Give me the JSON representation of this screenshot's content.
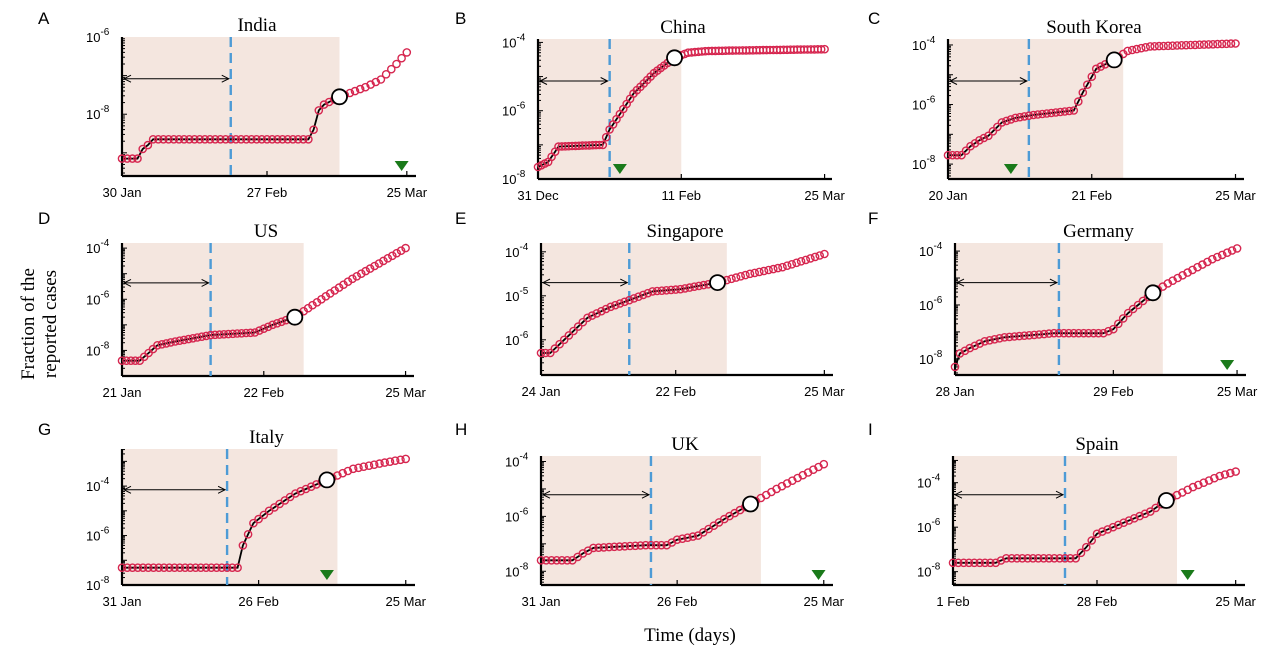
{
  "figure": {
    "ylabel_line1": "Fraction of the",
    "ylabel_line2": "reported cases",
    "xlabel": "Time (days)",
    "colors": {
      "marker": "#d6264f",
      "fit_line": "#000000",
      "shade": "#f4e6df",
      "divider": "#4d9bd6",
      "arrowhead": "#1a7a1a",
      "highlight_marker": "#000000"
    }
  },
  "chart_data": [
    {
      "type": "scatter",
      "panel": "A",
      "title": "India",
      "yscale": "log",
      "xlim": [
        0,
        56
      ],
      "ylim_exp": [
        -9.6,
        -6
      ],
      "yticks": [
        {
          "exp": -6,
          "label": "10"
        },
        {
          "exp": -8,
          "label": "10"
        }
      ],
      "xticks": [
        {
          "x": 0,
          "label": "30 Jan"
        },
        {
          "x": 28,
          "label": "27 Feb"
        },
        {
          "x": 55,
          "label": "25 Mar"
        }
      ],
      "train_end": 42,
      "divider": 21,
      "green_marker": 54,
      "highlight": 42,
      "range_arrow": [
        0,
        21
      ],
      "knots": [
        [
          0,
          -9.15
        ],
        [
          3,
          -9.15
        ],
        [
          4,
          -8.9
        ],
        [
          5,
          -8.8
        ],
        [
          6,
          -8.65
        ],
        [
          36,
          -8.65
        ],
        [
          37,
          -8.4
        ],
        [
          38,
          -7.9
        ],
        [
          39,
          -7.75
        ],
        [
          42,
          -7.55
        ],
        [
          47,
          -7.3
        ],
        [
          50,
          -7.1
        ],
        [
          53,
          -6.7
        ],
        [
          55,
          -6.4
        ]
      ]
    },
    {
      "type": "scatter",
      "panel": "B",
      "title": "China",
      "yscale": "log",
      "xlim": [
        0,
        85
      ],
      "ylim_exp": [
        -8,
        -3.9
      ],
      "yticks": [
        {
          "exp": -4,
          "label": "10"
        },
        {
          "exp": -6,
          "label": "10"
        },
        {
          "exp": -8,
          "label": "10"
        }
      ],
      "xticks": [
        {
          "x": 0,
          "label": "31 Dec"
        },
        {
          "x": 42,
          "label": "11 Feb"
        },
        {
          "x": 84,
          "label": "25 Mar"
        }
      ],
      "train_end": 42,
      "divider": 21,
      "green_marker": 24,
      "highlight": 40,
      "range_arrow": [
        0,
        21
      ],
      "knots": [
        [
          0,
          -7.65
        ],
        [
          3,
          -7.5
        ],
        [
          6,
          -7.05
        ],
        [
          19,
          -7
        ],
        [
          21,
          -6.55
        ],
        [
          24,
          -6.1
        ],
        [
          28,
          -5.5
        ],
        [
          34,
          -4.9
        ],
        [
          40,
          -4.45
        ],
        [
          44,
          -4.3
        ],
        [
          50,
          -4.25
        ],
        [
          84,
          -4.2
        ]
      ]
    },
    {
      "type": "scatter",
      "panel": "C",
      "title": "South Korea",
      "yscale": "log",
      "xlim": [
        0,
        65
      ],
      "ylim_exp": [
        -8.5,
        -3.8
      ],
      "yticks": [
        {
          "exp": -4,
          "label": "10"
        },
        {
          "exp": -6,
          "label": "10"
        },
        {
          "exp": -8,
          "label": "10"
        }
      ],
      "xticks": [
        {
          "x": 0,
          "label": "20 Jan"
        },
        {
          "x": 32,
          "label": "21 Feb"
        },
        {
          "x": 64,
          "label": "25 Mar"
        }
      ],
      "train_end": 39,
      "divider": 18,
      "green_marker": 14,
      "highlight": 37,
      "range_arrow": [
        0,
        18
      ],
      "knots": [
        [
          0,
          -7.7
        ],
        [
          3,
          -7.7
        ],
        [
          5,
          -7.4
        ],
        [
          7,
          -7.2
        ],
        [
          9,
          -7.05
        ],
        [
          12,
          -6.6
        ],
        [
          15,
          -6.45
        ],
        [
          19,
          -6.35
        ],
        [
          28,
          -6.2
        ],
        [
          30,
          -5.6
        ],
        [
          33,
          -4.8
        ],
        [
          37,
          -4.5
        ],
        [
          40,
          -4.2
        ],
        [
          45,
          -4.05
        ],
        [
          64,
          -3.95
        ]
      ]
    },
    {
      "type": "scatter",
      "panel": "D",
      "title": "US",
      "yscale": "log",
      "xlim": [
        0,
        65
      ],
      "ylim_exp": [
        -9,
        -3.8
      ],
      "yticks": [
        {
          "exp": -4,
          "label": "10"
        },
        {
          "exp": -6,
          "label": "10"
        },
        {
          "exp": -8,
          "label": "10"
        }
      ],
      "xticks": [
        {
          "x": 0,
          "label": "21 Jan"
        },
        {
          "x": 32,
          "label": "22 Feb"
        },
        {
          "x": 64,
          "label": "25 Mar"
        }
      ],
      "train_end": 41,
      "divider": 20,
      "green_marker": null,
      "highlight": 39,
      "range_arrow": [
        0,
        20
      ],
      "knots": [
        [
          0,
          -8.4
        ],
        [
          4,
          -8.4
        ],
        [
          6,
          -8.1
        ],
        [
          8,
          -7.8
        ],
        [
          12,
          -7.65
        ],
        [
          20,
          -7.4
        ],
        [
          30,
          -7.3
        ],
        [
          34,
          -7.0
        ],
        [
          39,
          -6.7
        ],
        [
          45,
          -6.0
        ],
        [
          52,
          -5.2
        ],
        [
          58,
          -4.6
        ],
        [
          64,
          -4.0
        ]
      ]
    },
    {
      "type": "scatter",
      "panel": "E",
      "title": "Singapore",
      "yscale": "log",
      "xlim": [
        0,
        62
      ],
      "ylim_exp": [
        -6.8,
        -3.8
      ],
      "yticks": [
        {
          "exp": -4,
          "label": "10"
        },
        {
          "exp": -5,
          "label": "10"
        },
        {
          "exp": -6,
          "label": "10"
        }
      ],
      "xticks": [
        {
          "x": 0,
          "label": "24 Jan"
        },
        {
          "x": 29,
          "label": "22 Feb"
        },
        {
          "x": 61,
          "label": "25 Mar"
        }
      ],
      "train_end": 40,
      "divider": 19,
      "green_marker": null,
      "highlight": 38,
      "range_arrow": [
        0,
        19
      ],
      "knots": [
        [
          0,
          -6.3
        ],
        [
          2,
          -6.3
        ],
        [
          6,
          -5.9
        ],
        [
          10,
          -5.5
        ],
        [
          15,
          -5.25
        ],
        [
          19,
          -5.1
        ],
        [
          24,
          -4.9
        ],
        [
          30,
          -4.85
        ],
        [
          38,
          -4.7
        ],
        [
          45,
          -4.5
        ],
        [
          52,
          -4.35
        ],
        [
          61,
          -4.05
        ]
      ]
    },
    {
      "type": "scatter",
      "panel": "F",
      "title": "Germany",
      "yscale": "log",
      "xlim": [
        0,
        58
      ],
      "ylim_exp": [
        -8.6,
        -3.7
      ],
      "yticks": [
        {
          "exp": -4,
          "label": "10"
        },
        {
          "exp": -6,
          "label": "10"
        },
        {
          "exp": -8,
          "label": "10"
        }
      ],
      "xticks": [
        {
          "x": 0,
          "label": "28 Jan"
        },
        {
          "x": 32,
          "label": "29 Feb"
        },
        {
          "x": 57,
          "label": "25 Mar"
        }
      ],
      "train_end": 42,
      "divider": 21,
      "green_marker": 55,
      "highlight": 40,
      "range_arrow": [
        0,
        21
      ],
      "knots": [
        [
          0,
          -8.3
        ],
        [
          1,
          -7.8
        ],
        [
          3,
          -7.6
        ],
        [
          6,
          -7.35
        ],
        [
          10,
          -7.2
        ],
        [
          20,
          -7.05
        ],
        [
          30,
          -7.05
        ],
        [
          32,
          -6.9
        ],
        [
          35,
          -6.3
        ],
        [
          40,
          -5.55
        ],
        [
          43,
          -5.2
        ],
        [
          48,
          -4.7
        ],
        [
          52,
          -4.3
        ],
        [
          57,
          -3.9
        ]
      ]
    },
    {
      "type": "scatter",
      "panel": "G",
      "title": "Italy",
      "yscale": "log",
      "xlim": [
        0,
        55
      ],
      "ylim_exp": [
        -8,
        -2.5
      ],
      "yticks": [
        {
          "exp": -4,
          "label": "10"
        },
        {
          "exp": -6,
          "label": "10"
        },
        {
          "exp": -8,
          "label": "10"
        }
      ],
      "xticks": [
        {
          "x": 0,
          "label": "31 Jan"
        },
        {
          "x": 26,
          "label": "26 Feb"
        },
        {
          "x": 54,
          "label": "25 Mar"
        }
      ],
      "train_end": 41,
      "divider": 20,
      "green_marker": 39,
      "highlight": 39,
      "range_arrow": [
        0,
        20
      ],
      "knots": [
        [
          0,
          -7.3
        ],
        [
          22,
          -7.3
        ],
        [
          23,
          -6.4
        ],
        [
          25,
          -5.5
        ],
        [
          28,
          -5.0
        ],
        [
          33,
          -4.3
        ],
        [
          39,
          -3.75
        ],
        [
          44,
          -3.3
        ],
        [
          50,
          -3.05
        ],
        [
          54,
          -2.9
        ]
      ]
    },
    {
      "type": "scatter",
      "panel": "H",
      "title": "UK",
      "yscale": "log",
      "xlim": [
        0,
        55
      ],
      "ylim_exp": [
        -8.5,
        -3.8
      ],
      "yticks": [
        {
          "exp": -4,
          "label": "10"
        },
        {
          "exp": -6,
          "label": "10"
        },
        {
          "exp": -8,
          "label": "10"
        }
      ],
      "xticks": [
        {
          "x": 0,
          "label": "31 Jan"
        },
        {
          "x": 26,
          "label": "26 Feb"
        },
        {
          "x": 54,
          "label": "25 Mar"
        }
      ],
      "train_end": 42,
      "divider": 21,
      "green_marker": 53,
      "highlight": 40,
      "range_arrow": [
        0,
        21
      ],
      "knots": [
        [
          0,
          -7.6
        ],
        [
          6,
          -7.6
        ],
        [
          8,
          -7.35
        ],
        [
          10,
          -7.15
        ],
        [
          20,
          -7.05
        ],
        [
          24,
          -7.05
        ],
        [
          26,
          -6.85
        ],
        [
          30,
          -6.7
        ],
        [
          35,
          -6.1
        ],
        [
          40,
          -5.55
        ],
        [
          45,
          -5.0
        ],
        [
          50,
          -4.5
        ],
        [
          54,
          -4.1
        ]
      ]
    },
    {
      "type": "scatter",
      "panel": "I",
      "title": "Spain",
      "yscale": "log",
      "xlim": [
        0,
        54
      ],
      "ylim_exp": [
        -8.6,
        -2.8
      ],
      "yticks": [
        {
          "exp": -4,
          "label": "10"
        },
        {
          "exp": -6,
          "label": "10"
        },
        {
          "exp": -8,
          "label": "10"
        }
      ],
      "xticks": [
        {
          "x": 0,
          "label": "1 Feb"
        },
        {
          "x": 27,
          "label": "28 Feb"
        },
        {
          "x": 53,
          "label": "25 Mar"
        }
      ],
      "train_end": 42,
      "divider": 21,
      "green_marker": 44,
      "highlight": 40,
      "range_arrow": [
        0,
        21
      ],
      "knots": [
        [
          0,
          -7.6
        ],
        [
          8,
          -7.6
        ],
        [
          10,
          -7.4
        ],
        [
          23,
          -7.4
        ],
        [
          25,
          -6.9
        ],
        [
          27,
          -6.3
        ],
        [
          33,
          -5.7
        ],
        [
          37,
          -5.3
        ],
        [
          40,
          -4.8
        ],
        [
          45,
          -4.2
        ],
        [
          50,
          -3.7
        ],
        [
          53,
          -3.5
        ]
      ]
    }
  ]
}
